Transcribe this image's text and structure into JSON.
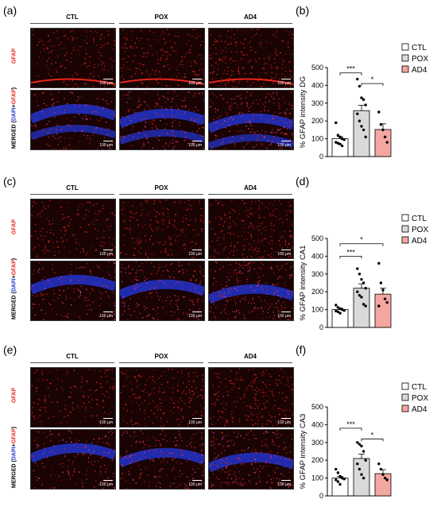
{
  "columns": [
    "CTL",
    "POX",
    "AD4"
  ],
  "scale_label": "100 μm",
  "micro_rows": [
    {
      "letter": "(a)",
      "label_top": "GFAP",
      "label_bottom_prefix": "MERGED (",
      "label_dapi": "DAPI",
      "label_plus": "+",
      "label_gfap": "GFAP",
      "label_close": ")"
    },
    {
      "letter": "(c)",
      "label_top": "GFAP",
      "label_bottom_prefix": "MERGED (",
      "label_dapi": "DAPI",
      "label_plus": "+",
      "label_gfap": "GFAP",
      "label_close": ")"
    },
    {
      "letter": "(e)",
      "label_top": "GFAP",
      "label_bottom_prefix": "MERGED (",
      "label_dapi": "DAPI",
      "label_plus": "+",
      "label_gfap": "GFAP",
      "label_close": ")"
    }
  ],
  "colors": {
    "CTL": "#ffffff",
    "POX": "#d9d9d9",
    "AD4": "#f4a6a0",
    "gfap": "#e8261c",
    "dapi": "#2233cc"
  },
  "chart_data": [
    {
      "letter": "(b)",
      "type": "bar",
      "categories": [
        "CTL",
        "POX",
        "AD4"
      ],
      "values": [
        100,
        258,
        152
      ],
      "errors": [
        12,
        30,
        32
      ],
      "points": [
        [
          190,
          120,
          110,
          100,
          95,
          80,
          75,
          70,
          60
        ],
        [
          435,
          395,
          330,
          320,
          290,
          240,
          200,
          170,
          150,
          110
        ],
        [
          250,
          180,
          150,
          110,
          80
        ]
      ],
      "ylabel": "% GFAP intensity DG",
      "ylim": [
        0,
        500
      ],
      "yticks": [
        0,
        100,
        200,
        300,
        400,
        500
      ],
      "significance": [
        {
          "from": 0,
          "to": 1,
          "label": "***",
          "y": 470
        },
        {
          "from": 1,
          "to": 2,
          "label": "*",
          "y": 410
        }
      ],
      "legend": [
        "CTL",
        "POX",
        "AD4"
      ]
    },
    {
      "letter": "(d)",
      "type": "bar",
      "categories": [
        "CTL",
        "POX",
        "AD4"
      ],
      "values": [
        100,
        220,
        187
      ],
      "errors": [
        8,
        25,
        33
      ],
      "points": [
        [
          125,
          112,
          105,
          100,
          95,
          92,
          88,
          80
        ],
        [
          330,
          300,
          270,
          250,
          220,
          200,
          180,
          170,
          130,
          120
        ],
        [
          360,
          250,
          210,
          160,
          140,
          120
        ]
      ],
      "ylabel": "% GFAP intensity CA1",
      "ylim": [
        0,
        500
      ],
      "yticks": [
        0,
        100,
        200,
        300,
        400,
        500
      ],
      "significance": [
        {
          "from": 0,
          "to": 1,
          "label": "***",
          "y": 400
        },
        {
          "from": 0,
          "to": 2,
          "label": "*",
          "y": 470
        }
      ],
      "legend": [
        "CTL",
        "POX",
        "AD4"
      ]
    },
    {
      "letter": "(f)",
      "type": "bar",
      "categories": [
        "CTL",
        "POX",
        "AD4"
      ],
      "values": [
        100,
        210,
        125
      ],
      "errors": [
        10,
        25,
        22
      ],
      "points": [
        [
          150,
          130,
          110,
          100,
          95,
          90,
          80,
          65
        ],
        [
          300,
          290,
          280,
          250,
          200,
          180,
          150,
          120,
          100
        ],
        [
          180,
          150,
          120,
          100,
          90
        ]
      ],
      "ylabel": "% GFAP intensity CA3",
      "ylim": [
        0,
        500
      ],
      "yticks": [
        0,
        100,
        200,
        300,
        400,
        500
      ],
      "significance": [
        {
          "from": 0,
          "to": 1,
          "label": "***",
          "y": 380
        },
        {
          "from": 1,
          "to": 2,
          "label": "*",
          "y": 320
        }
      ],
      "legend": [
        "CTL",
        "POX",
        "AD4"
      ]
    }
  ]
}
